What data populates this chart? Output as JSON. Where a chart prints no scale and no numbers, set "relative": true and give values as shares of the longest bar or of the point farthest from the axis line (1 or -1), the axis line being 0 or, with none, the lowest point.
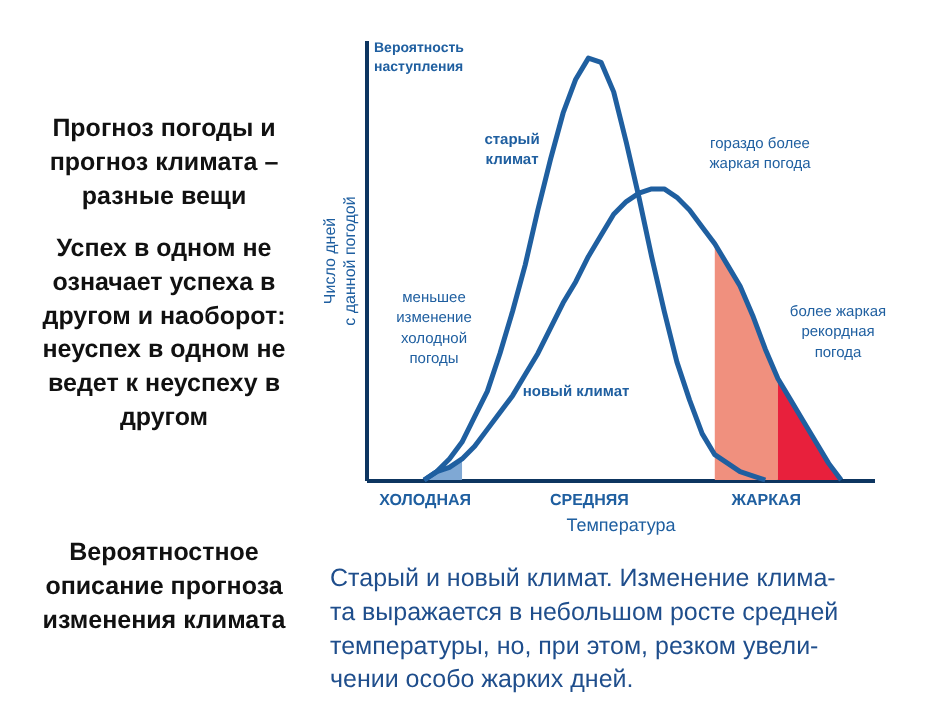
{
  "chart_data": {
    "type": "line",
    "relative": true,
    "title": "Прогноз погоды и\nпрогноз климата –\nразные вещи",
    "subtitle": "Успех в одном не\nозначает успеха в\nдругом и наоборот:\nнеуспех в одном не\nведет к неуспеху в\nдругом",
    "xlabel": "Температура",
    "ylabel": "Число дней\nс данной погодой",
    "categories": [
      null,
      null,
      null,
      null,
      "ХОЛОДНАЯ",
      null,
      null,
      null,
      null,
      null,
      null,
      null,
      null,
      null,
      null,
      null,
      null,
      "СРЕДНЯЯ",
      null,
      null,
      null,
      null,
      null,
      null,
      null,
      null,
      null,
      null,
      null,
      null,
      null,
      "ЖАРКАЯ",
      null,
      null,
      null,
      null,
      null,
      null,
      null,
      null
    ],
    "series": [
      {
        "type": "area",
        "color": "#7fa8d4",
        "values": [
          null,
          null,
          null,
          null,
          0,
          0.02,
          0.03,
          0.05,
          null,
          null,
          null,
          null,
          null,
          null,
          null,
          null,
          null,
          null,
          null,
          null,
          null,
          null,
          null,
          null,
          null,
          null,
          null,
          null,
          null,
          null,
          null,
          null,
          null,
          null,
          null,
          null,
          null,
          null,
          null,
          null
        ]
      },
      {
        "type": "area",
        "color": "#f0907e",
        "values": [
          null,
          null,
          null,
          null,
          null,
          null,
          null,
          null,
          null,
          null,
          null,
          null,
          null,
          null,
          null,
          null,
          null,
          null,
          null,
          null,
          null,
          null,
          null,
          null,
          null,
          null,
          null,
          0.56,
          0.51,
          0.46,
          0.39,
          0.31,
          0.24,
          null,
          null,
          null,
          null,
          null,
          null,
          null
        ]
      },
      {
        "type": "area",
        "color": "#e8203c",
        "values": [
          null,
          null,
          null,
          null,
          null,
          null,
          null,
          null,
          null,
          null,
          null,
          null,
          null,
          null,
          null,
          null,
          null,
          null,
          null,
          null,
          null,
          null,
          null,
          null,
          null,
          null,
          null,
          null,
          null,
          null,
          null,
          null,
          0.24,
          0.19,
          0.14,
          0.09,
          0.04,
          0,
          null,
          null
        ]
      },
      {
        "name": "старый\nклимат",
        "color": "#1f5fa0",
        "values": [
          null,
          null,
          null,
          null,
          0,
          0.02,
          0.05,
          0.09,
          0.15,
          0.21,
          0.3,
          0.4,
          0.51,
          0.64,
          0.76,
          0.87,
          0.95,
          1,
          0.99,
          0.92,
          0.8,
          0.67,
          0.53,
          0.4,
          0.28,
          0.19,
          0.11,
          0.06,
          0.04,
          0.02,
          0.01,
          0,
          null,
          null,
          null,
          null,
          null,
          null,
          null,
          null
        ]
      },
      {
        "name": "новый климат",
        "color": "#1f5fa0",
        "values": [
          null,
          null,
          null,
          null,
          0,
          0.02,
          0.03,
          0.05,
          0.08,
          0.12,
          0.16,
          0.2,
          0.25,
          0.3,
          0.36,
          0.42,
          0.47,
          0.53,
          0.58,
          0.63,
          0.66,
          0.68,
          0.69,
          0.69,
          0.67,
          0.64,
          0.6,
          0.56,
          0.51,
          0.46,
          0.39,
          0.31,
          0.24,
          0.19,
          0.14,
          0.09,
          0.04,
          0,
          null,
          null
        ]
      }
    ],
    "annotations": [
      "Вероятность\nнаступления",
      "меньшее\nизменение\nхолодной\nпогоды",
      "гораздо более\nжаркая погода",
      "более жаркая\nрекордная\nпогода",
      "Вероятностное\nописание прогноза\nизменения климата",
      "Старый и новый климат. Изменение клима-\nта выражается в небольшом росте средней\nтемпературы, но, при этом, резком увели-\nчении особо жарких дней."
    ],
    "legend": false,
    "grid": false
  }
}
